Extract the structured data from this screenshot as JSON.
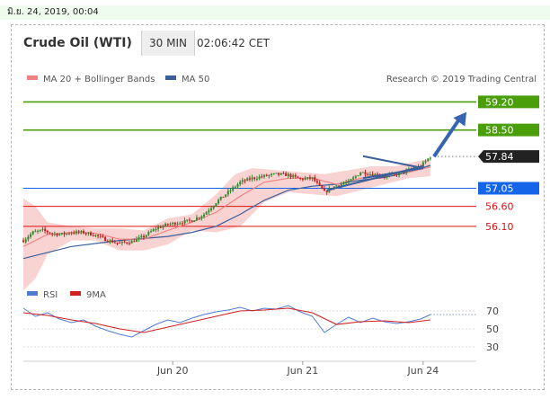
{
  "top_bar": {
    "timestamp": "มิ.ย. 24, 2019, 00:04"
  },
  "header": {
    "instrument": "Crude Oil (WTI)",
    "timeframe": "30 MIN",
    "clock": "02:06:42 CET"
  },
  "chart_data": {
    "type": "candlestick",
    "title": "Crude Oil (WTI)",
    "timeframe": "30 MIN",
    "source": "Research © 2019 Trading Central",
    "ylim": [
      54.8,
      59.5
    ],
    "x_ticks": [
      "Jun 20",
      "Jun 21",
      "Jun 24"
    ],
    "legend": [
      {
        "name": "MA 20 + Bollinger Bands",
        "color": "#f08080"
      },
      {
        "name": "MA 50",
        "color": "#3a5f9a"
      }
    ],
    "levels": [
      {
        "label": "59.20",
        "value": 59.2,
        "role": "resistance-2",
        "color": "#4a9e0a"
      },
      {
        "label": "58.50",
        "value": 58.5,
        "role": "resistance-1",
        "color": "#4a9e0a"
      },
      {
        "label": "57.84",
        "value": 57.84,
        "role": "last-price",
        "color": "#222222"
      },
      {
        "label": "57.05",
        "value": 57.05,
        "role": "pivot",
        "color": "#1565e8"
      },
      {
        "label": "56.60",
        "value": 56.6,
        "role": "support-1",
        "color": "#e01010"
      },
      {
        "label": "56.10",
        "value": 56.1,
        "role": "support-2",
        "color": "#e01010"
      }
    ],
    "price_path": [
      {
        "i": 0,
        "p": 55.75
      },
      {
        "i": 4,
        "p": 55.95
      },
      {
        "i": 8,
        "p": 56.0
      },
      {
        "i": 12,
        "p": 55.92
      },
      {
        "i": 16,
        "p": 55.9
      },
      {
        "i": 20,
        "p": 55.95
      },
      {
        "i": 25,
        "p": 55.95
      },
      {
        "i": 30,
        "p": 55.88
      },
      {
        "i": 35,
        "p": 55.75
      },
      {
        "i": 40,
        "p": 55.68
      },
      {
        "i": 45,
        "p": 55.72
      },
      {
        "i": 50,
        "p": 55.85
      },
      {
        "i": 55,
        "p": 56.05
      },
      {
        "i": 60,
        "p": 56.15
      },
      {
        "i": 65,
        "p": 56.2
      },
      {
        "i": 70,
        "p": 56.25
      },
      {
        "i": 75,
        "p": 56.4
      },
      {
        "i": 80,
        "p": 56.7
      },
      {
        "i": 85,
        "p": 56.95
      },
      {
        "i": 90,
        "p": 57.2
      },
      {
        "i": 95,
        "p": 57.3
      },
      {
        "i": 100,
        "p": 57.35
      },
      {
        "i": 105,
        "p": 57.4
      },
      {
        "i": 110,
        "p": 57.38
      },
      {
        "i": 115,
        "p": 57.28
      },
      {
        "i": 120,
        "p": 57.3
      },
      {
        "i": 125,
        "p": 56.95
      },
      {
        "i": 130,
        "p": 57.12
      },
      {
        "i": 135,
        "p": 57.2
      },
      {
        "i": 140,
        "p": 57.45
      },
      {
        "i": 145,
        "p": 57.4
      },
      {
        "i": 150,
        "p": 57.35
      },
      {
        "i": 155,
        "p": 57.4
      },
      {
        "i": 160,
        "p": 57.5
      },
      {
        "i": 165,
        "p": 57.6
      },
      {
        "i": 169,
        "p": 57.84
      }
    ],
    "ma20_path": [
      {
        "i": 0,
        "p": 55.6
      },
      {
        "i": 10,
        "p": 55.9
      },
      {
        "i": 20,
        "p": 55.95
      },
      {
        "i": 30,
        "p": 55.93
      },
      {
        "i": 40,
        "p": 55.78
      },
      {
        "i": 50,
        "p": 55.78
      },
      {
        "i": 60,
        "p": 56.0
      },
      {
        "i": 70,
        "p": 56.2
      },
      {
        "i": 80,
        "p": 56.45
      },
      {
        "i": 90,
        "p": 56.85
      },
      {
        "i": 100,
        "p": 57.2
      },
      {
        "i": 110,
        "p": 57.3
      },
      {
        "i": 120,
        "p": 57.3
      },
      {
        "i": 130,
        "p": 57.15
      },
      {
        "i": 140,
        "p": 57.3
      },
      {
        "i": 150,
        "p": 57.4
      },
      {
        "i": 160,
        "p": 57.45
      },
      {
        "i": 169,
        "p": 57.58
      }
    ],
    "bb_upper_path": [
      {
        "i": 0,
        "p": 56.8
      },
      {
        "i": 5,
        "p": 56.6
      },
      {
        "i": 10,
        "p": 56.2
      },
      {
        "i": 20,
        "p": 56.1
      },
      {
        "i": 30,
        "p": 56.05
      },
      {
        "i": 40,
        "p": 56.05
      },
      {
        "i": 50,
        "p": 56.0
      },
      {
        "i": 60,
        "p": 56.3
      },
      {
        "i": 70,
        "p": 56.4
      },
      {
        "i": 80,
        "p": 56.9
      },
      {
        "i": 88,
        "p": 57.4
      },
      {
        "i": 95,
        "p": 57.55
      },
      {
        "i": 105,
        "p": 57.5
      },
      {
        "i": 115,
        "p": 57.45
      },
      {
        "i": 125,
        "p": 57.4
      },
      {
        "i": 135,
        "p": 57.5
      },
      {
        "i": 145,
        "p": 57.6
      },
      {
        "i": 155,
        "p": 57.6
      },
      {
        "i": 169,
        "p": 57.8
      }
    ],
    "bb_lower_path": [
      {
        "i": 0,
        "p": 54.5
      },
      {
        "i": 5,
        "p": 54.8
      },
      {
        "i": 10,
        "p": 55.4
      },
      {
        "i": 20,
        "p": 55.75
      },
      {
        "i": 30,
        "p": 55.75
      },
      {
        "i": 40,
        "p": 55.5
      },
      {
        "i": 50,
        "p": 55.5
      },
      {
        "i": 60,
        "p": 55.65
      },
      {
        "i": 70,
        "p": 56.0
      },
      {
        "i": 80,
        "p": 55.95
      },
      {
        "i": 90,
        "p": 56.1
      },
      {
        "i": 100,
        "p": 56.7
      },
      {
        "i": 110,
        "p": 56.95
      },
      {
        "i": 120,
        "p": 56.9
      },
      {
        "i": 130,
        "p": 56.85
      },
      {
        "i": 140,
        "p": 57.0
      },
      {
        "i": 150,
        "p": 57.15
      },
      {
        "i": 160,
        "p": 57.3
      },
      {
        "i": 169,
        "p": 57.35
      }
    ],
    "ma50_path": [
      {
        "i": 0,
        "p": 55.3
      },
      {
        "i": 20,
        "p": 55.6
      },
      {
        "i": 40,
        "p": 55.75
      },
      {
        "i": 60,
        "p": 55.85
      },
      {
        "i": 70,
        "p": 55.95
      },
      {
        "i": 80,
        "p": 56.1
      },
      {
        "i": 90,
        "p": 56.4
      },
      {
        "i": 100,
        "p": 56.75
      },
      {
        "i": 110,
        "p": 57.0
      },
      {
        "i": 120,
        "p": 57.1
      },
      {
        "i": 130,
        "p": 57.15
      },
      {
        "i": 140,
        "p": 57.25
      },
      {
        "i": 150,
        "p": 57.32
      },
      {
        "i": 160,
        "p": 57.45
      },
      {
        "i": 169,
        "p": 57.62
      }
    ],
    "trendlines": [
      {
        "i1": 141,
        "p1": 57.3,
        "i2": 166,
        "p2": 57.55
      },
      {
        "i1": 126,
        "p1": 57.0,
        "i2": 166,
        "p2": 57.6
      }
    ],
    "forecast_arrow": {
      "i1": 169,
      "p1": 57.84,
      "i2": 184,
      "p2": 58.95
    },
    "rsi": {
      "legend": [
        {
          "name": "RSI",
          "color": "#4f7bd1"
        },
        {
          "name": "9MA",
          "color": "#d22020"
        }
      ],
      "y_ticks": [
        70,
        50,
        30
      ],
      "ylim": [
        20,
        80
      ],
      "rsi_path": [
        {
          "i": 0,
          "p": 73
        },
        {
          "i": 5,
          "p": 64
        },
        {
          "i": 10,
          "p": 68
        },
        {
          "i": 15,
          "p": 61
        },
        {
          "i": 20,
          "p": 57
        },
        {
          "i": 25,
          "p": 60
        },
        {
          "i": 30,
          "p": 53
        },
        {
          "i": 35,
          "p": 48
        },
        {
          "i": 40,
          "p": 44
        },
        {
          "i": 45,
          "p": 41
        },
        {
          "i": 50,
          "p": 48
        },
        {
          "i": 55,
          "p": 55
        },
        {
          "i": 60,
          "p": 60
        },
        {
          "i": 65,
          "p": 57
        },
        {
          "i": 70,
          "p": 62
        },
        {
          "i": 75,
          "p": 66
        },
        {
          "i": 80,
          "p": 69
        },
        {
          "i": 85,
          "p": 71
        },
        {
          "i": 90,
          "p": 74
        },
        {
          "i": 95,
          "p": 70
        },
        {
          "i": 100,
          "p": 73
        },
        {
          "i": 105,
          "p": 72
        },
        {
          "i": 110,
          "p": 76
        },
        {
          "i": 115,
          "p": 69
        },
        {
          "i": 120,
          "p": 64
        },
        {
          "i": 125,
          "p": 46
        },
        {
          "i": 130,
          "p": 55
        },
        {
          "i": 135,
          "p": 63
        },
        {
          "i": 140,
          "p": 57
        },
        {
          "i": 145,
          "p": 62
        },
        {
          "i": 150,
          "p": 58
        },
        {
          "i": 155,
          "p": 56
        },
        {
          "i": 160,
          "p": 58
        },
        {
          "i": 165,
          "p": 61
        },
        {
          "i": 169,
          "p": 66
        }
      ],
      "ma9_path": [
        {
          "i": 0,
          "p": 68
        },
        {
          "i": 10,
          "p": 65
        },
        {
          "i": 20,
          "p": 60
        },
        {
          "i": 30,
          "p": 56
        },
        {
          "i": 40,
          "p": 50
        },
        {
          "i": 50,
          "p": 46
        },
        {
          "i": 60,
          "p": 52
        },
        {
          "i": 70,
          "p": 58
        },
        {
          "i": 80,
          "p": 64
        },
        {
          "i": 90,
          "p": 70
        },
        {
          "i": 100,
          "p": 71
        },
        {
          "i": 110,
          "p": 73
        },
        {
          "i": 120,
          "p": 68
        },
        {
          "i": 130,
          "p": 55
        },
        {
          "i": 140,
          "p": 58
        },
        {
          "i": 150,
          "p": 59
        },
        {
          "i": 160,
          "p": 57
        },
        {
          "i": 169,
          "p": 60
        }
      ]
    }
  },
  "colors": {
    "bull_candle": "#2f8a2f",
    "bear_candle": "#c02020",
    "bb_fill": "#f9d2d2",
    "ma20": "#f08080",
    "ma50": "#3a5f9a",
    "trend": "#3a5f9a",
    "arrow": "#3565b0"
  }
}
